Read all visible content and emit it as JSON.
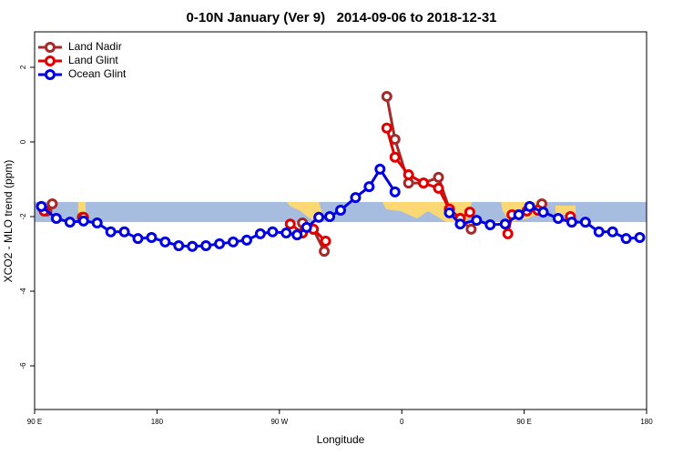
{
  "chart_data": {
    "type": "line",
    "title": "0-10N January (Ver 9)   2014-09-06 to 2018-12-31",
    "xlabel": "Longitude",
    "ylabel": "XCO2 - MLO trend (ppm)",
    "xlim": [
      90,
      540
    ],
    "ylim": [
      -7.17,
      2.95
    ],
    "xticks": [
      {
        "value": 90,
        "label": "90 E"
      },
      180,
      {
        "value": 270,
        "label": "90 W"
      },
      {
        "value": 360,
        "label": "0"
      },
      {
        "value": 450,
        "label": "90 E"
      },
      {
        "value": 540,
        "label": "180"
      }
    ],
    "yticks": [
      2,
      0,
      -2,
      -4,
      -6
    ],
    "legend": "upper left",
    "series": [
      {
        "name": "Land Nadir",
        "color": "#a52a2a",
        "x": [
          99,
          103,
          110,
          125,
          200,
          287,
          295,
          303,
          330,
          349,
          355,
          365,
          376,
          387,
          395,
          411,
          440,
          463,
          475,
          484
        ],
        "values": [
          -1.85,
          -1.66,
          null,
          -2.02,
          null,
          -2.17,
          -2.34,
          -2.93,
          null,
          1.22,
          0.07,
          -1.1,
          -1.1,
          -0.95,
          -1.8,
          -2.34,
          null,
          -1.66,
          null,
          -2.02
        ]
      },
      {
        "name": "Land Glint",
        "color": "#e00000",
        "x": [
          97,
          110,
          126,
          200,
          278,
          287,
          295,
          304,
          330,
          349,
          355,
          365,
          376,
          387,
          395,
          403,
          410,
          425,
          438,
          441,
          452,
          460,
          475,
          484
        ],
        "values": [
          -1.85,
          null,
          -2.02,
          null,
          -2.2,
          -2.44,
          -2.34,
          -2.66,
          null,
          0.37,
          -0.41,
          -0.88,
          -1.1,
          -1.24,
          -1.8,
          -2.05,
          -1.88,
          null,
          -2.46,
          -1.95,
          -1.85,
          -1.83,
          null,
          -2.0
        ]
      },
      {
        "name": "Ocean Glint",
        "color": "#0000e0",
        "x": [
          95,
          106,
          116,
          126,
          136,
          146,
          156,
          166,
          176,
          186,
          196,
          206,
          216,
          226,
          236,
          246,
          256,
          265,
          275,
          283,
          290,
          299,
          307,
          315,
          326,
          336,
          344,
          355,
          375,
          395,
          403,
          415,
          425,
          436,
          446,
          454,
          464,
          475,
          485,
          495,
          505,
          515,
          525,
          535
        ],
        "values": [
          -1.73,
          -2.05,
          -2.15,
          -2.12,
          -2.17,
          -2.41,
          -2.41,
          -2.59,
          -2.56,
          -2.68,
          -2.78,
          -2.8,
          -2.78,
          -2.73,
          -2.68,
          -2.63,
          -2.46,
          -2.41,
          -2.44,
          -2.49,
          -2.29,
          -2.02,
          -2.0,
          -1.83,
          -1.49,
          -1.2,
          -0.73,
          -1.34,
          null,
          -1.9,
          -2.2,
          -2.1,
          -2.22,
          -2.2,
          -1.95,
          -1.73,
          -1.88,
          -2.05,
          -2.15,
          -2.15,
          -2.41,
          -2.41,
          -2.59,
          -2.56
        ]
      }
    ]
  }
}
